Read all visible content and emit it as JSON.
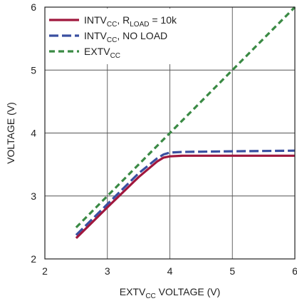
{
  "chart_data": {
    "type": "line",
    "xlabel": {
      "main": "EXTV",
      "sub": "CC",
      "rest": " VOLTAGE (V)"
    },
    "ylabel": "VOLTAGE (V)",
    "xlim": [
      2,
      6
    ],
    "ylim": [
      2,
      6
    ],
    "x_ticks": [
      "2",
      "3",
      "4",
      "5",
      "6"
    ],
    "y_ticks": [
      "2",
      "3",
      "4",
      "5",
      "6"
    ],
    "grid": true,
    "legend_position": "top-left",
    "series": [
      {
        "name": "INTV_CC, R_LOAD = 10k",
        "legend_parts": [
          {
            "text": "INTV",
            "sub": false
          },
          {
            "text": "CC",
            "sub": true
          },
          {
            "text": ", R",
            "sub": false
          },
          {
            "text": "LOAD",
            "sub": true
          },
          {
            "text": " = 10k",
            "sub": false
          }
        ],
        "color": "#a0173d",
        "dash": "solid",
        "x": [
          2.5,
          3.0,
          3.5,
          3.8,
          3.9,
          4.0,
          4.2,
          5.0,
          6.0
        ],
        "y": [
          2.33,
          2.82,
          3.3,
          3.55,
          3.61,
          3.63,
          3.64,
          3.64,
          3.64
        ]
      },
      {
        "name": "INTV_CC, NO LOAD",
        "legend_parts": [
          {
            "text": "INTV",
            "sub": false
          },
          {
            "text": "CC",
            "sub": true
          },
          {
            "text": ", NO LOAD",
            "sub": false
          }
        ],
        "color": "#3a4fa0",
        "dash": "long-dash",
        "x": [
          2.5,
          3.0,
          3.5,
          3.8,
          3.9,
          4.0,
          4.2,
          5.0,
          6.0
        ],
        "y": [
          2.38,
          2.87,
          3.36,
          3.6,
          3.66,
          3.69,
          3.7,
          3.71,
          3.72
        ]
      },
      {
        "name": "EXTV_CC",
        "legend_parts": [
          {
            "text": "EXTV",
            "sub": false
          },
          {
            "text": "CC",
            "sub": true
          }
        ],
        "color": "#3a8a44",
        "dash": "short-dash",
        "x": [
          2.5,
          6.0
        ],
        "y": [
          2.5,
          6.0
        ]
      }
    ]
  }
}
